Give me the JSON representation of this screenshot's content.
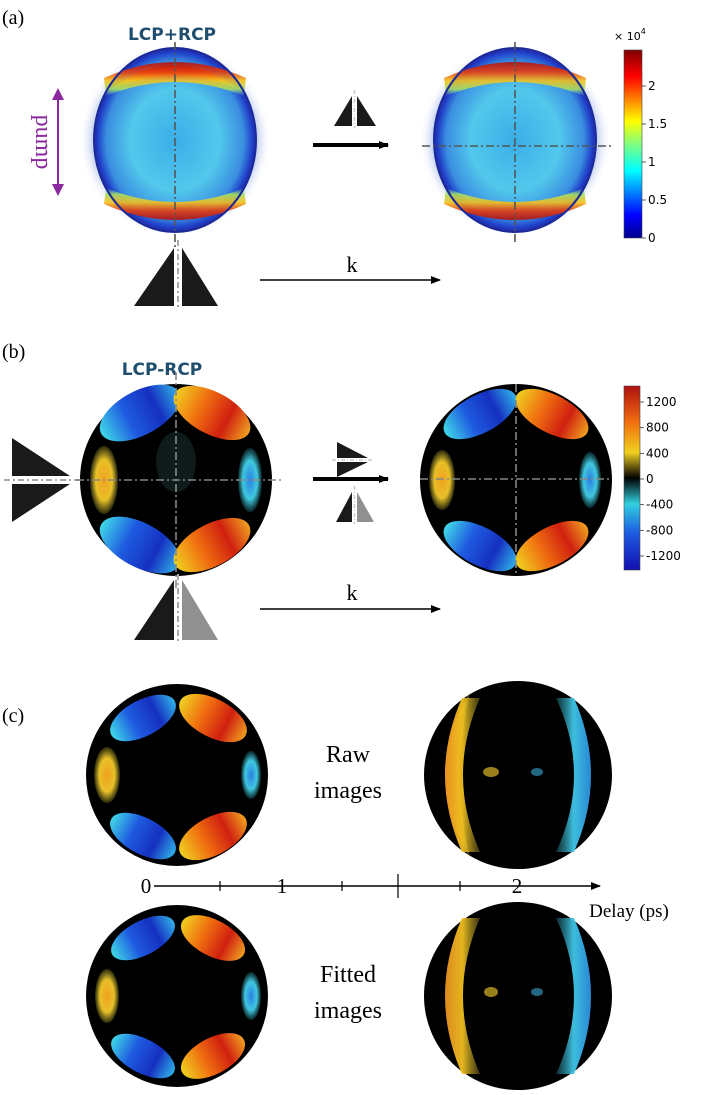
{
  "panels": {
    "a": {
      "label": "(a)",
      "title": "LCP+RCP",
      "pump_label": "pump",
      "k_label": "k",
      "colorbar": {
        "exponent": "× 10",
        "power": "4",
        "ticks": [
          "2",
          "1.5",
          "1",
          "0.5",
          "0"
        ],
        "colormap": "jet"
      }
    },
    "b": {
      "label": "(b)",
      "title": "LCP-RCP",
      "k_label": "k",
      "colorbar": {
        "ticks": [
          "1200",
          "800",
          "400",
          "0",
          "-400",
          "-800",
          "-1200"
        ],
        "colormap": "blue-cyan-black-yellow-red"
      }
    },
    "c": {
      "label": "(c)",
      "raw_label_1": "Raw",
      "raw_label_2": "images",
      "fitted_label_1": "Fitted",
      "fitted_label_2": "images",
      "axis_label": "Delay (ps)",
      "axis_ticks": [
        "0",
        "1",
        "2"
      ]
    }
  },
  "colors": {
    "title": "#1f4e6e",
    "pump": "#8b2a9e",
    "prism": "#1a1a1a",
    "prism_gray": "#909090",
    "dashline": "#777777"
  }
}
